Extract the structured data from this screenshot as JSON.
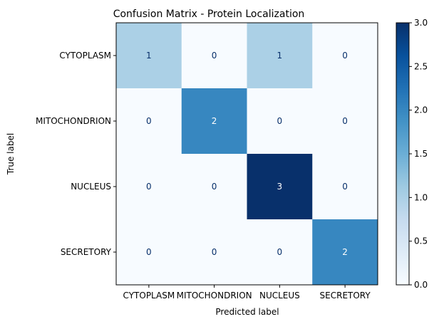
{
  "chart_data": {
    "type": "heatmap",
    "title": "Confusion Matrix - Protein Localization",
    "xlabel": "Predicted label",
    "ylabel": "True label",
    "categories_x": [
      "CYTOPLASM",
      "MITOCHONDRION",
      "NUCLEUS",
      "SECRETORY"
    ],
    "categories_y": [
      "CYTOPLASM",
      "MITOCHONDRION",
      "NUCLEUS",
      "SECRETORY"
    ],
    "values": [
      [
        1,
        0,
        1,
        0
      ],
      [
        0,
        2,
        0,
        0
      ],
      [
        0,
        0,
        3,
        0
      ],
      [
        0,
        0,
        0,
        2
      ]
    ],
    "colormap": "Blues",
    "colorbar": {
      "range": [
        0.0,
        3.0
      ],
      "ticks": [
        "0.0",
        "0.5",
        "1.0",
        "1.5",
        "2.0",
        "2.5",
        "3.0"
      ]
    }
  }
}
